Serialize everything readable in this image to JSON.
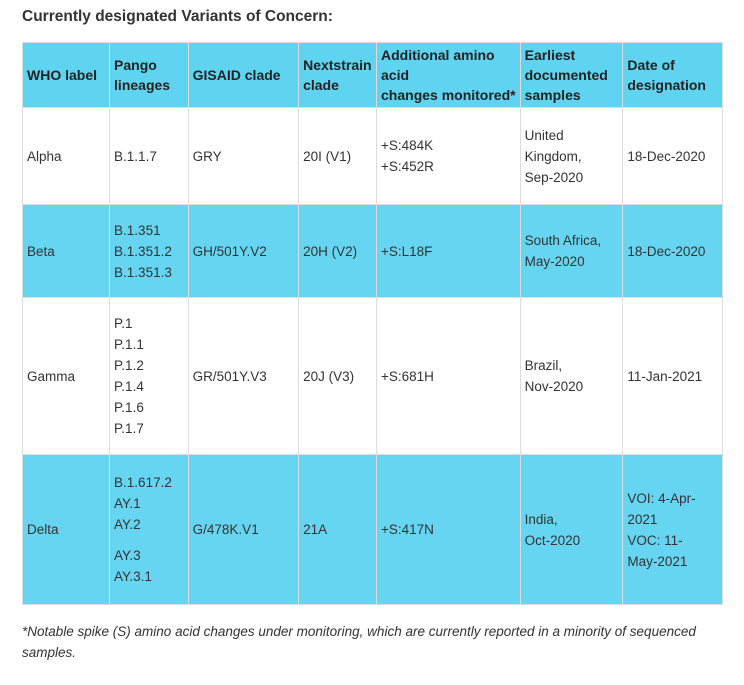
{
  "title": "Currently designated Variants of Concern:",
  "table": {
    "headers": [
      [
        "WHO label"
      ],
      [
        "Pango",
        "lineages"
      ],
      [
        "GISAID clade"
      ],
      [
        "Nextstrain",
        "clade"
      ],
      [
        "Additional amino",
        "acid",
        "changes monitored*"
      ],
      [
        "Earliest",
        "documented",
        "samples"
      ],
      [
        "Date of",
        "designation"
      ]
    ],
    "rows": [
      [
        [
          "Alpha"
        ],
        [
          "B.1.1.7"
        ],
        [
          "GRY"
        ],
        [
          "20I (V1)"
        ],
        [
          "+S:484K",
          "+S:452R"
        ],
        [
          "United",
          "Kingdom,",
          "Sep-2020"
        ],
        [
          "18-Dec-2020"
        ]
      ],
      [
        [
          "Beta"
        ],
        [
          "B.1.351",
          "B.1.351.2",
          "B.1.351.3"
        ],
        [
          "GH/501Y.V2"
        ],
        [
          "20H (V2)"
        ],
        [
          "+S:L18F"
        ],
        [
          "South Africa,",
          "May-2020"
        ],
        [
          "18-Dec-2020"
        ]
      ],
      [
        [
          "Gamma"
        ],
        [
          "P.1",
          "P.1.1",
          "P.1.2",
          "P.1.4",
          "P.1.6",
          "P.1.7"
        ],
        [
          "GR/501Y.V3"
        ],
        [
          "20J (V3)"
        ],
        [
          "+S:681H"
        ],
        [
          "Brazil,",
          "Nov-2020"
        ],
        [
          "11-Jan-2021"
        ]
      ],
      [
        [
          "Delta"
        ],
        [
          "B.1.617.2",
          "AY.1",
          "AY.2",
          "AY.3",
          "AY.3.1"
        ],
        [
          "G/478K.V1"
        ],
        [
          "21A"
        ],
        [
          "+S:417N"
        ],
        [
          "India,",
          "Oct-2020"
        ],
        [
          "VOI: 4-Apr-",
          "2021",
          "VOC: 11-",
          "May-2021"
        ]
      ]
    ]
  },
  "footnote": [
    "*Notable spike (S) amino acid changes under monitoring, which are currently reported in a minority of sequenced",
    "samples."
  ]
}
